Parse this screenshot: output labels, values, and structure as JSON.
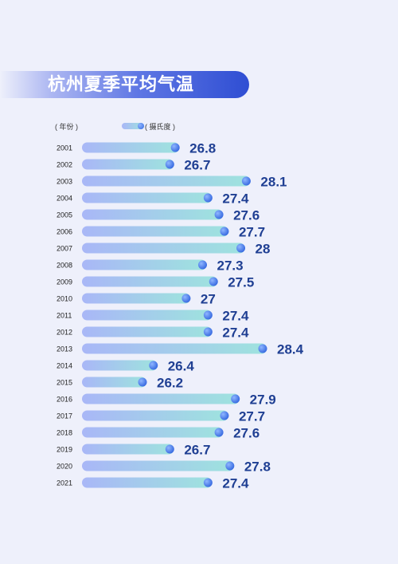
{
  "title": "杭州夏季平均气温",
  "legend": {
    "category_label": "( 年份 )",
    "unit_label": "( 摄氏度 )"
  },
  "colors": {
    "bar_start": "#a9b7f7",
    "bar_end": "#9ee3de",
    "dot_light": "#8fb6ff",
    "dot_dark": "#3568e0",
    "value_text": "#1f3f93",
    "title_banner": "#2f4ed3"
  },
  "chart_data": {
    "type": "bar",
    "orientation": "horizontal",
    "title": "杭州夏季平均气温",
    "xlabel": "( 摄氏度 )",
    "ylabel": "( 年份 )",
    "categories": [
      "2001",
      "2002",
      "2003",
      "2004",
      "2005",
      "2006",
      "2007",
      "2008",
      "2009",
      "2010",
      "2011",
      "2012",
      "2013",
      "2014",
      "2015",
      "2016",
      "2017",
      "2018",
      "2019",
      "2020",
      "2021"
    ],
    "values": [
      26.8,
      26.7,
      28.1,
      27.4,
      27.6,
      27.7,
      28,
      27.3,
      27.5,
      27,
      27.4,
      27.4,
      28.4,
      26.4,
      26.2,
      27.9,
      27.7,
      27.6,
      26.7,
      27.8,
      27.4
    ],
    "value_labels": [
      "26.8",
      "26.7",
      "28.1",
      "27.4",
      "27.6",
      "27.7",
      "28",
      "27.3",
      "27.5",
      "27",
      "27.4",
      "27.4",
      "28.4",
      "26.4",
      "26.2",
      "27.9",
      "27.7",
      "27.6",
      "26.7",
      "27.8",
      "27.4"
    ],
    "grid": false,
    "legend": "top-left"
  }
}
